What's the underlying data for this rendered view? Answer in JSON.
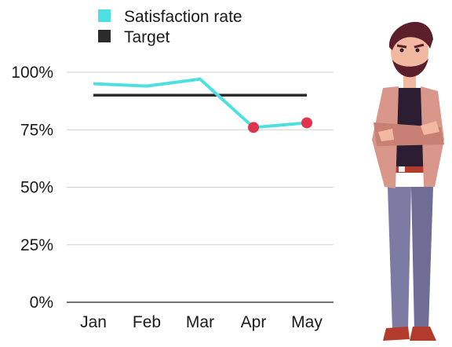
{
  "chart_data": {
    "type": "line",
    "categories": [
      "Jan",
      "Feb",
      "Mar",
      "Apr",
      "May"
    ],
    "series": [
      {
        "name": "Satisfaction rate",
        "values": [
          95,
          94,
          97,
          76,
          78
        ],
        "color": "#4ee0e0",
        "highlighted_points": [
          3,
          4
        ],
        "highlight_color": "#e0334d"
      },
      {
        "name": "Target",
        "values": [
          90,
          90,
          90,
          90,
          90
        ],
        "color": "#2b2b2b"
      }
    ],
    "ylim": [
      0,
      100
    ],
    "yticks": [
      "0%",
      "25%",
      "50%",
      "75%",
      "100%"
    ],
    "ytick_values": [
      0,
      25,
      50,
      75,
      100
    ],
    "grid": true,
    "legend_position": "top-left"
  },
  "illustration": {
    "icon": "man-arms-crossed-icon",
    "colors": {
      "hair": "#5a1f2b",
      "skin": "#f2b8a0",
      "jacket": "#d9968a",
      "shirt": "#2c1d33",
      "pants": "#7d7aa3",
      "shoes": "#b23b2b"
    }
  }
}
